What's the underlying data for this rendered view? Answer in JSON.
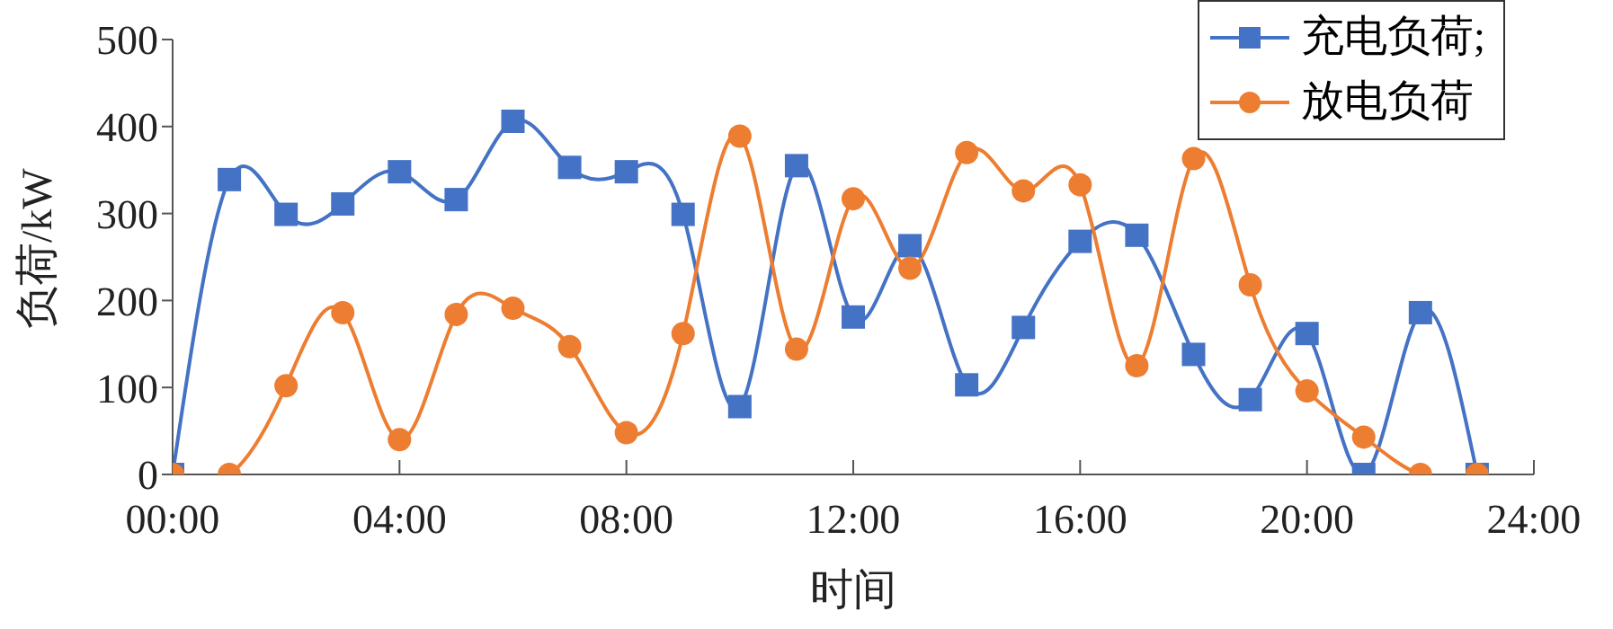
{
  "chart_data": {
    "type": "line",
    "xlabel": "时间",
    "ylabel": "负荷/kW",
    "x": [
      0,
      1,
      2,
      3,
      4,
      5,
      6,
      7,
      8,
      9,
      10,
      11,
      12,
      13,
      14,
      15,
      16,
      17,
      18,
      19,
      20,
      21,
      22,
      23
    ],
    "series": [
      {
        "name": "充电负荷;",
        "color": "#4472c4",
        "marker": "square",
        "values": [
          0,
          339,
          299,
          311,
          348,
          316,
          406,
          353,
          348,
          299,
          78,
          355,
          181,
          263,
          103,
          169,
          268,
          275,
          138,
          86,
          162,
          0,
          186,
          0
        ]
      },
      {
        "name": "放电负荷",
        "color": "#ed7d31",
        "marker": "circle",
        "values": [
          0,
          0,
          102,
          186,
          40,
          184,
          191,
          147,
          48,
          162,
          389,
          144,
          317,
          237,
          370,
          326,
          333,
          125,
          363,
          218,
          96,
          43,
          0,
          0
        ]
      }
    ],
    "xlim": [
      0,
      24
    ],
    "xticks": [
      {
        "value": 0,
        "label": "00:00"
      },
      {
        "value": 4,
        "label": "04:00"
      },
      {
        "value": 8,
        "label": "08:00"
      },
      {
        "value": 12,
        "label": "12:00"
      },
      {
        "value": 16,
        "label": "16:00"
      },
      {
        "value": 20,
        "label": "20:00"
      },
      {
        "value": 24,
        "label": "24:00"
      }
    ],
    "ylim": [
      0,
      500
    ],
    "yticks": [
      0,
      100,
      200,
      300,
      400,
      500
    ],
    "grid": false,
    "legend": "top right",
    "line_style": "solid"
  }
}
